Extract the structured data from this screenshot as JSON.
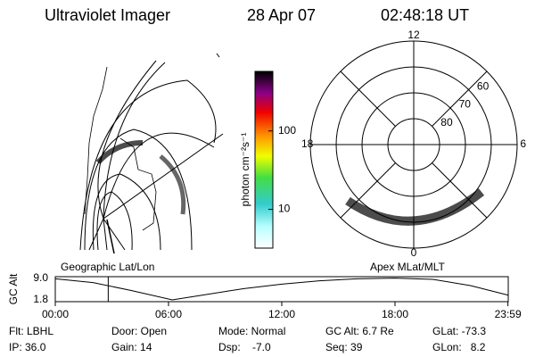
{
  "header": {
    "instrument": "Ultraviolet Imager",
    "date": "28 Apr 07",
    "time": "02:48:18 UT"
  },
  "colorbar": {
    "label": "photon cm⁻²s⁻¹",
    "scale": "log",
    "lim": [
      3.2,
      575
    ],
    "ticks": [
      10,
      100
    ]
  },
  "polar": {
    "rlim": [
      90,
      50
    ],
    "rticks": [
      80,
      70,
      60
    ],
    "hour_labels": [
      {
        "value": 12,
        "label": "12"
      },
      {
        "value": 6,
        "label": "6"
      },
      {
        "value": 18,
        "label": "18"
      },
      {
        "value": 0,
        "label": "0"
      }
    ]
  },
  "map_labels": {
    "left": "Geographic Lat/Lon",
    "right": "Apex MLat/MLT"
  },
  "altitude": {
    "ylabel": "GC Alt",
    "ylim": [
      1.2,
      9.6
    ],
    "yticks": [
      {
        "value": 9.0,
        "label": "9.0"
      },
      1.8
    ],
    "xlim": [
      0,
      24
    ],
    "xticks": [
      {
        "value": 0,
        "label": "00:00"
      },
      {
        "value": 6,
        "label": "06:00"
      },
      {
        "value": 12,
        "label": "12:00"
      },
      {
        "value": 18,
        "label": "18:00"
      },
      {
        "value": 23.983,
        "label": "23:59"
      }
    ],
    "x": [
      0,
      2,
      4,
      6.2,
      8,
      10,
      12,
      14,
      16,
      18,
      20,
      22,
      23.983
    ],
    "values": [
      8.9,
      7.6,
      5,
      1.8,
      3.6,
      5.6,
      7.1,
      8.2,
      8.9,
      9.1,
      8.7,
      6.6,
      3.4
    ],
    "marker": 2.805,
    "marker_color": "#e00000"
  },
  "footer": [
    [
      "Flt: LBHL",
      "Door: Open",
      "Mode: Normal",
      "GC Alt: 6.7 Re",
      "GLat: -73.3"
    ],
    [
      "IP: 36.0",
      "Gain: 14",
      "Dsp:    -7.0",
      "Seq: 39",
      "GLon:   8.2"
    ]
  ]
}
